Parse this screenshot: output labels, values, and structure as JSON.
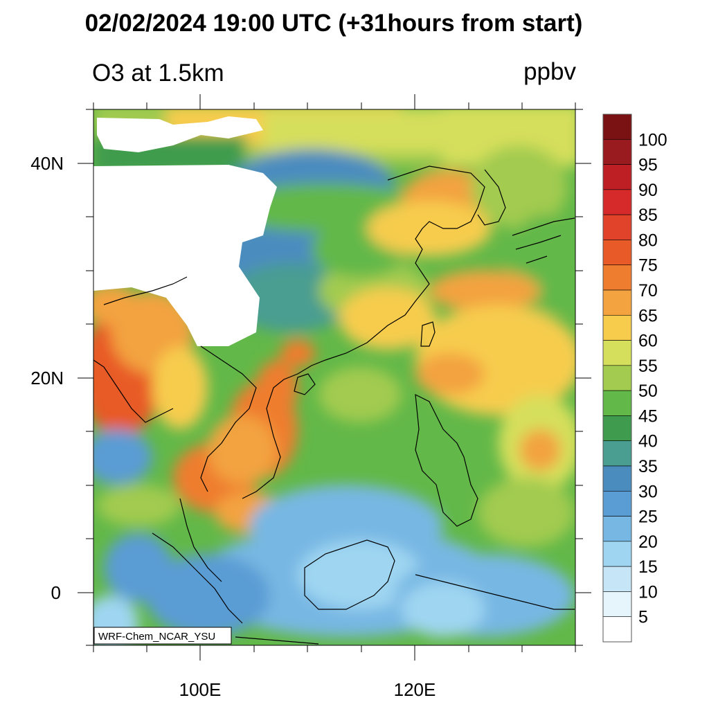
{
  "title": "02/02/2024 19:00 UTC (+31hours from start)",
  "subtitle_left": "O3 at 1.5km",
  "units": "ppbv",
  "credit": "WRF-Chem_NCAR_YSU",
  "axes": {
    "lon_range": [
      90,
      135
    ],
    "lat_range": [
      -5,
      45
    ],
    "lon_tick_labels": [
      "100E",
      "120E"
    ],
    "lat_tick_labels": [
      "40N",
      "20N",
      "0"
    ]
  },
  "colorbar": {
    "levels": [
      "5",
      "10",
      "15",
      "20",
      "25",
      "30",
      "35",
      "40",
      "45",
      "50",
      "55",
      "60",
      "65",
      "70",
      "75",
      "80",
      "85",
      "90",
      "95",
      "100"
    ],
    "colors": [
      "#ffffff",
      "#e6f4fc",
      "#c6e6f8",
      "#9fd5f1",
      "#77b7e3",
      "#5a9cd4",
      "#4b8cbf",
      "#4a9d91",
      "#3f9c4e",
      "#62b848",
      "#a2cb4f",
      "#d6df5c",
      "#f7cc4d",
      "#f3a33f",
      "#ef7d2f",
      "#e85a27",
      "#e0432a",
      "#d62a2a",
      "#bd1f24",
      "#9a1b1f",
      "#7a1214"
    ]
  }
}
